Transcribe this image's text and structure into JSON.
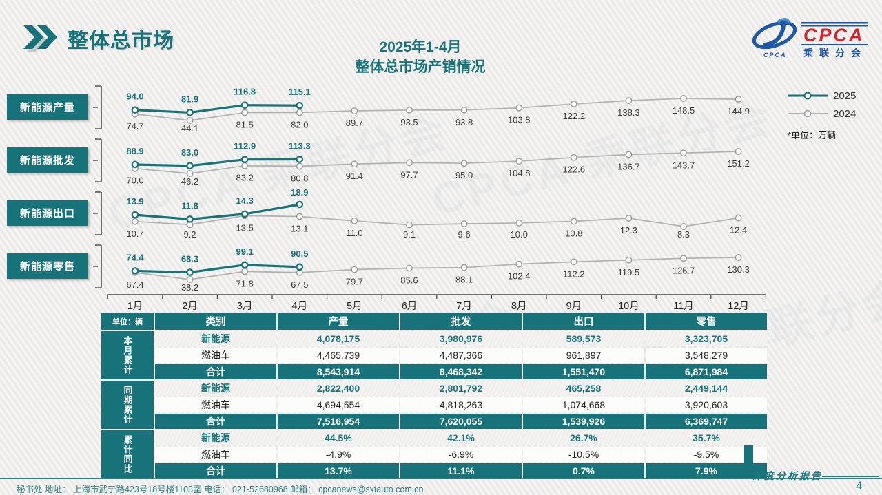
{
  "header": {
    "title": "整体总市场",
    "subtitle_line1": "2025年1-4月",
    "subtitle_line2": "整体总市场产销情况",
    "logo": {
      "brand": "CPCA",
      "brand_small": "CPCA",
      "org": "乘联分会"
    }
  },
  "legend": {
    "series": [
      {
        "label": "2025",
        "color": "#17727a"
      },
      {
        "label": "2024",
        "color": "#b3b3b3"
      }
    ],
    "unit_note": "*单位：万辆"
  },
  "months": [
    "1月",
    "2月",
    "3月",
    "4月",
    "5月",
    "6月",
    "7月",
    "8月",
    "9月",
    "10月",
    "11月",
    "12月"
  ],
  "chart_data": [
    {
      "type": "line",
      "title": "新能源产量",
      "categories": [
        "1月",
        "2月",
        "3月",
        "4月",
        "5月",
        "6月",
        "7月",
        "8月",
        "9月",
        "10月",
        "11月",
        "12月"
      ],
      "series": [
        {
          "name": "2025",
          "color": "#17727a",
          "values": [
            94.0,
            81.9,
            116.8,
            115.1
          ]
        },
        {
          "name": "2024",
          "color": "#b3b3b3",
          "values": [
            74.7,
            44.1,
            81.5,
            82.0,
            89.7,
            93.5,
            93.8,
            103.8,
            122.2,
            138.3,
            148.5,
            144.9
          ]
        }
      ],
      "ylabel": "万辆",
      "grid": false,
      "legend_position": "right"
    },
    {
      "type": "line",
      "title": "新能源批发",
      "categories": [
        "1月",
        "2月",
        "3月",
        "4月",
        "5月",
        "6月",
        "7月",
        "8月",
        "9月",
        "10月",
        "11月",
        "12月"
      ],
      "series": [
        {
          "name": "2025",
          "color": "#17727a",
          "values": [
            88.9,
            83.0,
            112.9,
            113.3
          ]
        },
        {
          "name": "2024",
          "color": "#b3b3b3",
          "values": [
            70.0,
            46.2,
            83.2,
            80.8,
            91.4,
            97.7,
            95.0,
            104.8,
            122.6,
            136.7,
            143.7,
            151.2
          ]
        }
      ],
      "ylabel": "万辆",
      "grid": false,
      "legend_position": "right"
    },
    {
      "type": "line",
      "title": "新能源出口",
      "categories": [
        "1月",
        "2月",
        "3月",
        "4月",
        "5月",
        "6月",
        "7月",
        "8月",
        "9月",
        "10月",
        "11月",
        "12月"
      ],
      "series": [
        {
          "name": "2025",
          "color": "#17727a",
          "values": [
            13.9,
            11.8,
            14.3,
            18.9
          ]
        },
        {
          "name": "2024",
          "color": "#b3b3b3",
          "values": [
            10.7,
            9.2,
            13.5,
            13.1,
            11.0,
            9.1,
            9.6,
            10.0,
            10.8,
            12.3,
            8.3,
            12.4
          ]
        }
      ],
      "ylabel": "万辆",
      "grid": false,
      "legend_position": "right"
    },
    {
      "type": "line",
      "title": "新能源零售",
      "categories": [
        "1月",
        "2月",
        "3月",
        "4月",
        "5月",
        "6月",
        "7月",
        "8月",
        "9月",
        "10月",
        "11月",
        "12月"
      ],
      "series": [
        {
          "name": "2025",
          "color": "#17727a",
          "values": [
            74.4,
            68.3,
            99.1,
            90.5
          ]
        },
        {
          "name": "2024",
          "color": "#b3b3b3",
          "values": [
            67.4,
            38.2,
            71.8,
            67.5,
            79.7,
            85.6,
            88.1,
            102.4,
            112.2,
            119.5,
            126.7,
            130.3
          ]
        }
      ],
      "ylabel": "万辆",
      "grid": false,
      "legend_position": "right"
    }
  ],
  "table": {
    "unit_label": "单位：辆",
    "columns": [
      "类别",
      "产量",
      "批发",
      "出口",
      "零售"
    ],
    "groups": [
      {
        "name": "本月累计",
        "rows": [
          {
            "label": "新能源",
            "style": "nev",
            "values": [
              "4,078,175",
              "3,980,976",
              "589,573",
              "3,323,705"
            ]
          },
          {
            "label": "燃油车",
            "style": "ice",
            "values": [
              "4,465,739",
              "4,487,366",
              "961,897",
              "3,548,279"
            ]
          },
          {
            "label": "合计",
            "style": "total",
            "values": [
              "8,543,914",
              "8,468,342",
              "1,551,470",
              "6,871,984"
            ]
          }
        ]
      },
      {
        "name": "同期累计",
        "rows": [
          {
            "label": "新能源",
            "style": "nev",
            "values": [
              "2,822,400",
              "2,801,792",
              "465,258",
              "2,449,144"
            ]
          },
          {
            "label": "燃油车",
            "style": "ice",
            "values": [
              "4,694,554",
              "4,818,263",
              "1,074,668",
              "3,920,603"
            ]
          },
          {
            "label": "合计",
            "style": "total",
            "values": [
              "7,516,954",
              "7,620,055",
              "1,539,926",
              "6,369,747"
            ]
          }
        ]
      },
      {
        "name": "累计同比",
        "rows": [
          {
            "label": "新能源",
            "style": "nev",
            "values": [
              "44.5%",
              "42.1%",
              "26.7%",
              "35.7%"
            ]
          },
          {
            "label": "燃油车",
            "style": "ice",
            "values": [
              "-4.9%",
              "-6.9%",
              "-10.5%",
              "-9.5%"
            ]
          },
          {
            "label": "合计",
            "style": "total",
            "values": [
              "13.7%",
              "11.1%",
              "0.7%",
              "7.9%"
            ]
          }
        ]
      }
    ]
  },
  "footer": {
    "secretariat": "秘书处   地址： 上海市武宁路423号18号楼1103室  电话： 021-52680968   邮箱： cpcanews@sxtauto.com.cn",
    "report_label": "深度分析报告",
    "page_number": "4"
  },
  "watermark": "CPCA 乘联分会"
}
